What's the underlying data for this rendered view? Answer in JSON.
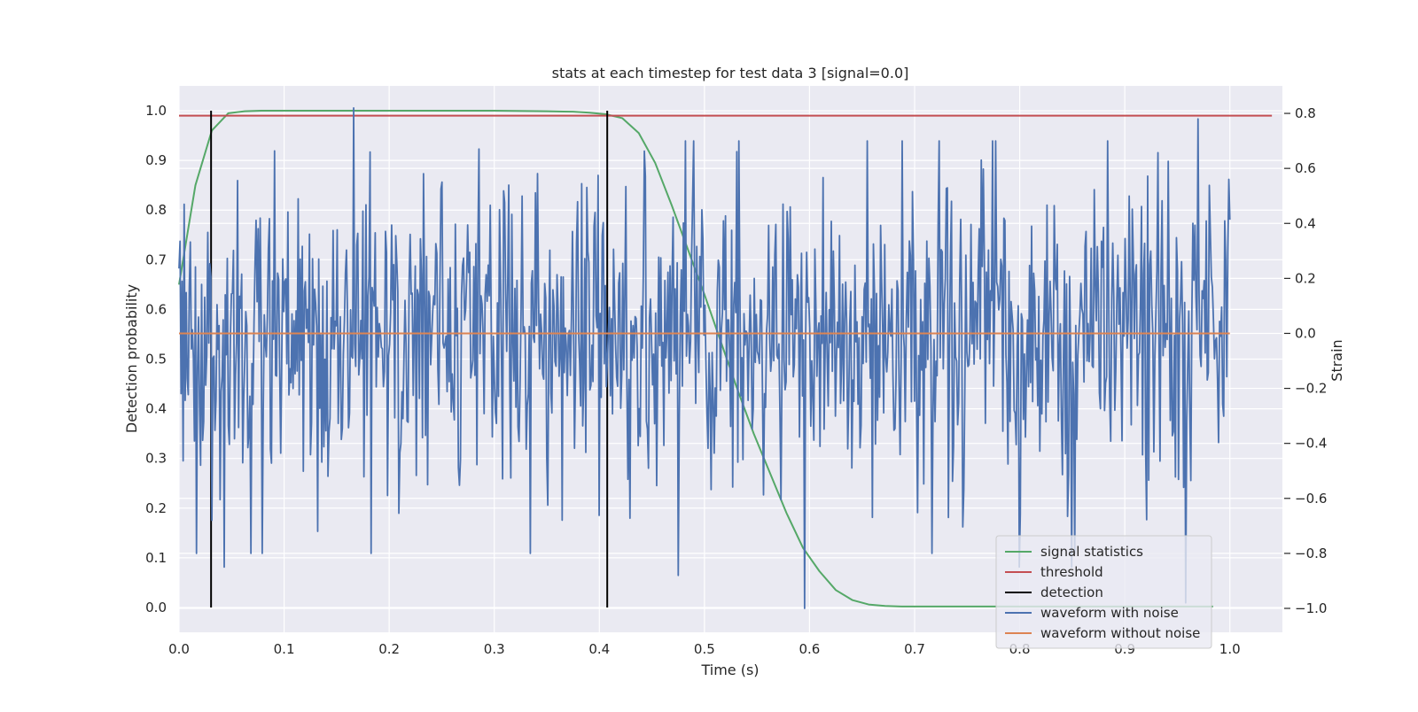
{
  "chart_data": {
    "type": "line",
    "title": "stats at each timestep for test data 3 [signal=0.0]",
    "xlabel": "Time (s)",
    "ylabel": "Detection probability",
    "ylabel_right": "Strain",
    "xlim": [
      0.0,
      1.05
    ],
    "ylim": [
      -0.05,
      1.05
    ],
    "ylim_right": [
      -1.087,
      0.9
    ],
    "x_ticks": [
      0.0,
      0.1,
      0.2,
      0.3,
      0.4,
      0.5,
      0.6,
      0.7,
      0.8,
      0.9,
      1.0
    ],
    "x_tick_labels": [
      "0.0",
      "0.1",
      "0.2",
      "0.3",
      "0.4",
      "0.5",
      "0.6",
      "0.7",
      "0.8",
      "0.9",
      "1.0"
    ],
    "y_ticks": [
      0.0,
      0.1,
      0.2,
      0.3,
      0.4,
      0.5,
      0.6,
      0.7,
      0.8,
      0.9,
      1.0
    ],
    "y_tick_labels": [
      "0.0",
      "0.1",
      "0.2",
      "0.3",
      "0.4",
      "0.5",
      "0.6",
      "0.7",
      "0.8",
      "0.9",
      "1.0"
    ],
    "y_right_ticks": [
      0.8,
      0.6,
      0.4,
      0.2,
      0.0,
      -0.2,
      -0.4,
      -0.6,
      -0.8,
      -1.0
    ],
    "y_right_tick_labels": [
      "0.8",
      "0.6",
      "0.4",
      "0.2",
      "0.0",
      "−0.2",
      "−0.4",
      "−0.6",
      "−0.8",
      "−1.0"
    ],
    "grid": true,
    "legend_position": "lower-right",
    "series": [
      {
        "name": "signal statistics",
        "axis": "left",
        "color": "#55a868",
        "x": [
          0.0,
          0.0156,
          0.0312,
          0.0469,
          0.0625,
          0.0781,
          0.0938,
          0.1,
          0.2,
          0.3,
          0.35,
          0.375,
          0.3906,
          0.4062,
          0.4219,
          0.4375,
          0.4531,
          0.4688,
          0.4844,
          0.5,
          0.5156,
          0.5312,
          0.5469,
          0.5625,
          0.5781,
          0.5938,
          0.6094,
          0.625,
          0.6406,
          0.6562,
          0.6719,
          0.6875,
          0.7,
          0.75,
          0.8,
          0.85,
          0.9,
          0.95,
          0.984
        ],
        "values": [
          0.65,
          0.85,
          0.96,
          0.995,
          0.999,
          1.0,
          1.0,
          1.0,
          1.0,
          1.0,
          0.999,
          0.998,
          0.996,
          0.993,
          0.985,
          0.955,
          0.895,
          0.81,
          0.72,
          0.63,
          0.535,
          0.44,
          0.35,
          0.27,
          0.19,
          0.12,
          0.073,
          0.035,
          0.015,
          0.006,
          0.003,
          0.002,
          0.002,
          0.002,
          0.002,
          0.002,
          0.002,
          0.002,
          0.002
        ]
      },
      {
        "name": "threshold",
        "axis": "left",
        "color": "#c44e52",
        "x": [
          0.0,
          1.04
        ],
        "values": [
          0.99,
          0.99
        ]
      },
      {
        "name": "detection",
        "axis": "left",
        "color": "#000000",
        "vertical_lines": [
          0.0305,
          0.4075
        ],
        "range": [
          0.0,
          1.0
        ]
      },
      {
        "name": "waveform with noise",
        "axis": "right",
        "color": "#4c72b0",
        "x_start": 0.0,
        "x_end": 1.0,
        "n_points": 1024,
        "seed": 3,
        "noise_sigma": 0.3,
        "peaks": [
          [
            0.166,
            0.82
          ],
          [
            0.595,
            -1.0
          ],
          [
            0.97,
            0.78
          ],
          [
            0.958,
            -0.98
          ],
          [
            0.849,
            -0.85
          ],
          [
            0.475,
            -0.88
          ],
          [
            0.043,
            -0.85
          ],
          [
            0.25,
            0.55
          ],
          [
            0.8,
            -0.85
          ]
        ]
      },
      {
        "name": "waveform without noise",
        "axis": "right",
        "color": "#dd8452",
        "x": [
          0.0,
          1.0
        ],
        "values": [
          0.0,
          0.0
        ]
      }
    ]
  }
}
